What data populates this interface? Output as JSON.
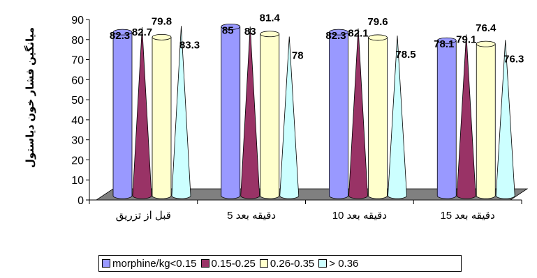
{
  "chart_data": {
    "type": "bar",
    "categories": [
      "قبل از تزریق",
      "دقیقه بعد 5",
      "دقیقه بعد 10",
      "دقیقه بعد 15"
    ],
    "series": [
      {
        "name": "morphine/kg<0.15",
        "values": [
          82.3,
          85,
          82.3,
          78.1
        ],
        "color": "#9999ff",
        "shape": "cylinder"
      },
      {
        "name": "0.15-0.25",
        "values": [
          82.7,
          83,
          82.1,
          79.1
        ],
        "color": "#993366",
        "shape": "cone"
      },
      {
        "name": "0.26-0.35",
        "values": [
          79.8,
          81.4,
          79.6,
          76.4
        ],
        "color": "#ffffcc",
        "shape": "cylinder"
      },
      {
        "name": "> 0.36",
        "values": [
          83.3,
          78,
          78.5,
          76.3
        ],
        "color": "#ccffff",
        "shape": "cone"
      }
    ],
    "data_label_texts": [
      [
        "82.3",
        "82.7",
        "79.8",
        "83.3"
      ],
      [
        "85",
        "83",
        "81.4",
        "78"
      ],
      [
        "82.3",
        "82.1",
        "79.6",
        "78.5"
      ],
      [
        "78.1",
        "79.1",
        "76.4",
        "76.3"
      ]
    ],
    "ylabel": "میانگین فشار خون دیاستول",
    "ylim": [
      0,
      90
    ],
    "yticks": [
      "0",
      "10",
      "20",
      "30",
      "40",
      "50",
      "60",
      "70",
      "80",
      "90"
    ],
    "floor_color": "#808080",
    "legend_position": "bottom",
    "grid": false
  }
}
